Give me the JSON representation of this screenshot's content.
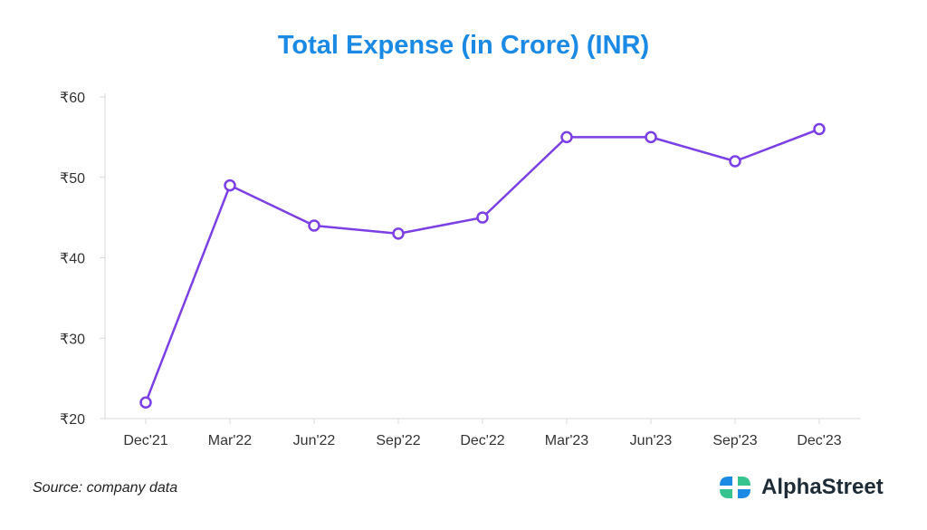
{
  "chart_data": {
    "type": "line",
    "title": "Total Expense (in Crore) (INR)",
    "categories": [
      "Dec'21",
      "Mar'22",
      "Jun'22",
      "Sep'22",
      "Dec'22",
      "Mar'23",
      "Jun'23",
      "Sep'23",
      "Dec'23"
    ],
    "series": [
      {
        "name": "Total Expense",
        "values": [
          22,
          49,
          44,
          43,
          45,
          55,
          55,
          52,
          56
        ]
      }
    ],
    "ylim": [
      20,
      60
    ],
    "yticks": [
      20,
      30,
      40,
      50,
      60
    ],
    "ytick_labels": [
      "₹20",
      "₹30",
      "₹40",
      "₹50",
      "₹60"
    ],
    "xlabel": "",
    "ylabel": "",
    "grid": false,
    "line_color": "#7b3fe4"
  },
  "footer": {
    "source": "Source: company data",
    "brand": "AlphaStreet",
    "brand_colors": [
      "#1a8ae5",
      "#35c48f"
    ]
  }
}
